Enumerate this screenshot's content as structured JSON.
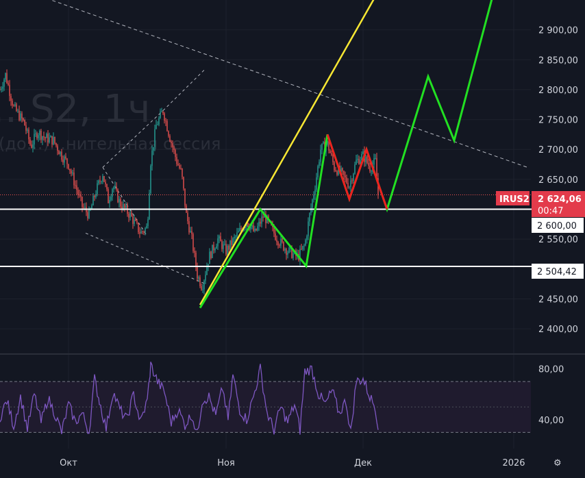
{
  "chart_data": [
    {
      "type": "candlestick",
      "title": "…S2, 1ч",
      "subtitle": "(до…)…нительная сессия",
      "symbol_label": "IRUS2",
      "last_price_label": "2 624,06",
      "countdown": "00:47",
      "y_ticks": [
        "2 900,00",
        "2 850,00",
        "2 800,00",
        "2 750,00",
        "2 700,00",
        "2 650,00",
        "2 550,00",
        "2 450,00",
        "2 400,00"
      ],
      "y_tick_values": [
        2900,
        2850,
        2800,
        2750,
        2700,
        2650,
        2550,
        2450,
        2400
      ],
      "ylim": [
        2360,
        2950
      ],
      "x_ticks": [
        "Окт",
        "Ноя",
        "Дек",
        "2026"
      ],
      "x_tick_values": [
        100,
        330,
        530,
        750
      ],
      "xlim": [
        0,
        775
      ],
      "horizontal_levels": [
        {
          "value": 2600,
          "label": "2 600,00"
        },
        {
          "value": 2504.42,
          "label": "2 504,42"
        }
      ],
      "price_path": [
        [
          0,
          2800
        ],
        [
          8,
          2825
        ],
        [
          20,
          2770
        ],
        [
          35,
          2745
        ],
        [
          45,
          2705
        ],
        [
          55,
          2730
        ],
        [
          65,
          2720
        ],
        [
          78,
          2715
        ],
        [
          90,
          2690
        ],
        [
          100,
          2675
        ],
        [
          110,
          2640
        ],
        [
          120,
          2605
        ],
        [
          130,
          2590
        ],
        [
          140,
          2630
        ],
        [
          150,
          2660
        ],
        [
          158,
          2615
        ],
        [
          165,
          2640
        ],
        [
          175,
          2610
        ],
        [
          190,
          2590
        ],
        [
          205,
          2560
        ],
        [
          215,
          2570
        ],
        [
          220,
          2680
        ],
        [
          228,
          2740
        ],
        [
          238,
          2765
        ],
        [
          248,
          2720
        ],
        [
          258,
          2680
        ],
        [
          265,
          2660
        ],
        [
          272,
          2590
        ],
        [
          280,
          2550
        ],
        [
          288,
          2490
        ],
        [
          295,
          2470
        ],
        [
          305,
          2520
        ],
        [
          318,
          2550
        ],
        [
          330,
          2530
        ],
        [
          345,
          2555
        ],
        [
          360,
          2580
        ],
        [
          372,
          2560
        ],
        [
          385,
          2590
        ],
        [
          395,
          2570
        ],
        [
          405,
          2550
        ],
        [
          420,
          2530
        ],
        [
          435,
          2520
        ],
        [
          445,
          2540
        ],
        [
          452,
          2590
        ],
        [
          460,
          2640
        ],
        [
          468,
          2700
        ],
        [
          478,
          2710
        ],
        [
          488,
          2670
        ],
        [
          498,
          2660
        ],
        [
          510,
          2640
        ],
        [
          520,
          2680
        ],
        [
          530,
          2690
        ],
        [
          540,
          2670
        ],
        [
          548,
          2680
        ],
        [
          552,
          2624
        ]
      ],
      "drawings": {
        "yellow_trend": [
          [
            292,
            2440
          ],
          [
            550,
            2960
          ]
        ],
        "green_zigzag": [
          [
            292,
            2435
          ],
          [
            380,
            2600
          ],
          [
            447,
            2505
          ],
          [
            478,
            2725
          ],
          [
            510,
            2617
          ],
          [
            535,
            2700
          ],
          [
            565,
            2600
          ],
          [
            625,
            2822
          ],
          [
            663,
            2715
          ],
          [
            720,
            2960
          ]
        ],
        "red_zigzag": [
          [
            478,
            2725
          ],
          [
            510,
            2617
          ],
          [
            535,
            2700
          ],
          [
            565,
            2600
          ]
        ],
        "dashed_channel_upper": [
          [
            0,
            2980
          ],
          [
            770,
            2670
          ]
        ],
        "dashed_wedge": [
          [
            [
              150,
              2670
            ],
            [
              215,
              2555
            ]
          ],
          [
            [
              125,
              2560
            ],
            [
              300,
              2475
            ]
          ],
          [
            [
              150,
              2670
            ],
            [
              238,
              2765
            ]
          ],
          [
            [
              238,
              2765
            ],
            [
              300,
              2835
            ]
          ]
        ]
      },
      "colors": {
        "background": "#131722",
        "bull": "#26a69a",
        "bear": "#ef5350",
        "yellow_line": "#f7e733",
        "green_line": "#22e022",
        "red_line": "#ef1f1f",
        "level_line": "#ffffff",
        "price_label_bg": "#e33b4b",
        "rsi_line": "#7e57c2",
        "rsi_band": "#1f1b2e"
      }
    },
    {
      "type": "line",
      "ylim": [
        20,
        90
      ],
      "y_ticks": [
        "80,00",
        "40,00"
      ],
      "y_tick_values": [
        80,
        40
      ],
      "band": [
        30,
        70
      ],
      "midline": 50,
      "rsi_path": [
        [
          0,
          42
        ],
        [
          10,
          55
        ],
        [
          20,
          35
        ],
        [
          30,
          58
        ],
        [
          40,
          33
        ],
        [
          50,
          60
        ],
        [
          60,
          38
        ],
        [
          70,
          57
        ],
        [
          80,
          45
        ],
        [
          90,
          30
        ],
        [
          100,
          52
        ],
        [
          110,
          38
        ],
        [
          120,
          45
        ],
        [
          130,
          30
        ],
        [
          138,
          72
        ],
        [
          145,
          55
        ],
        [
          155,
          33
        ],
        [
          165,
          62
        ],
        [
          175,
          48
        ],
        [
          185,
          40
        ],
        [
          195,
          60
        ],
        [
          205,
          38
        ],
        [
          215,
          55
        ],
        [
          220,
          83
        ],
        [
          230,
          70
        ],
        [
          240,
          62
        ],
        [
          250,
          38
        ],
        [
          260,
          48
        ],
        [
          270,
          36
        ],
        [
          280,
          44
        ],
        [
          288,
          28
        ],
        [
          295,
          55
        ],
        [
          305,
          58
        ],
        [
          315,
          43
        ],
        [
          325,
          65
        ],
        [
          333,
          40
        ],
        [
          340,
          75
        ],
        [
          350,
          48
        ],
        [
          360,
          40
        ],
        [
          370,
          58
        ],
        [
          380,
          80
        ],
        [
          390,
          45
        ],
        [
          400,
          32
        ],
        [
          410,
          50
        ],
        [
          420,
          38
        ],
        [
          430,
          52
        ],
        [
          438,
          32
        ],
        [
          445,
          78
        ],
        [
          455,
          80
        ],
        [
          465,
          60
        ],
        [
          475,
          52
        ],
        [
          485,
          63
        ],
        [
          495,
          45
        ],
        [
          505,
          55
        ],
        [
          512,
          30
        ],
        [
          520,
          70
        ],
        [
          530,
          72
        ],
        [
          540,
          58
        ],
        [
          548,
          50
        ],
        [
          552,
          32
        ]
      ]
    }
  ]
}
